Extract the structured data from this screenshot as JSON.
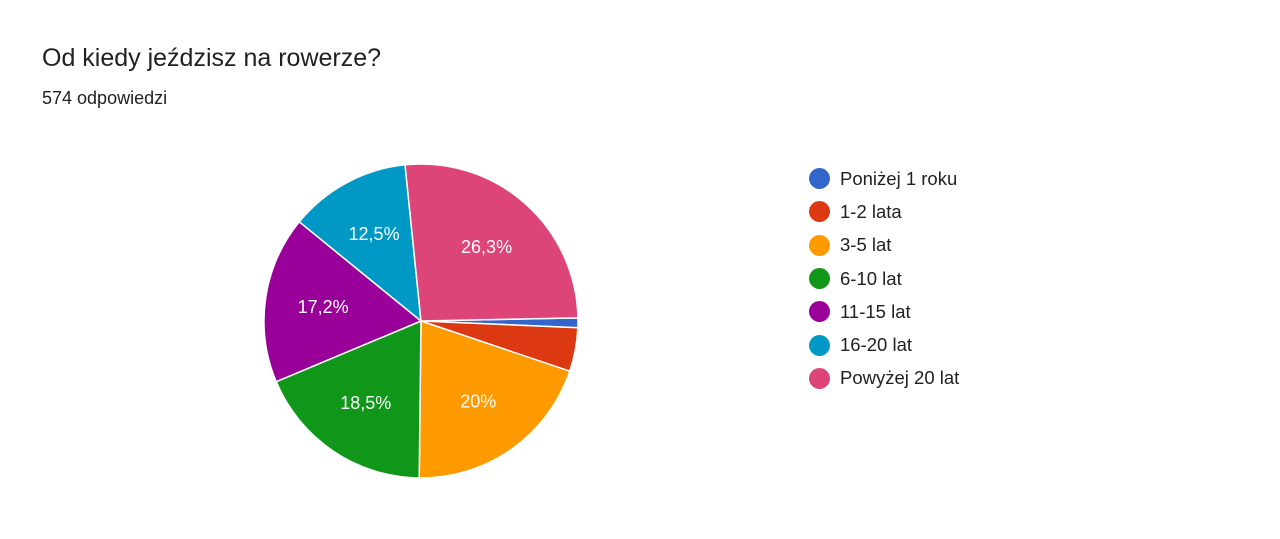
{
  "title": "Od kiedy jeździsz na rowerze?",
  "subtitle": "574 odpowiedzi",
  "chart_data": {
    "type": "pie",
    "title": "Od kiedy jeździsz na rowerze?",
    "subtitle": "574 odpowiedzi",
    "categories": [
      "Poniżej 1 roku",
      "1-2 lata",
      "3-5 lat",
      "6-10 lat",
      "11-15 lat",
      "16-20 lat",
      "Powyżej 20 lat"
    ],
    "values": [
      1.0,
      4.5,
      20.0,
      18.5,
      17.2,
      12.5,
      26.3
    ],
    "value_labels": [
      "",
      "",
      "20%",
      "18,5%",
      "17,2%",
      "12,5%",
      "26,3%"
    ],
    "colors": [
      "#3366cc",
      "#dc3912",
      "#ff9900",
      "#109618",
      "#990099",
      "#0099c6",
      "#dd4477"
    ],
    "legend_position": "right"
  }
}
